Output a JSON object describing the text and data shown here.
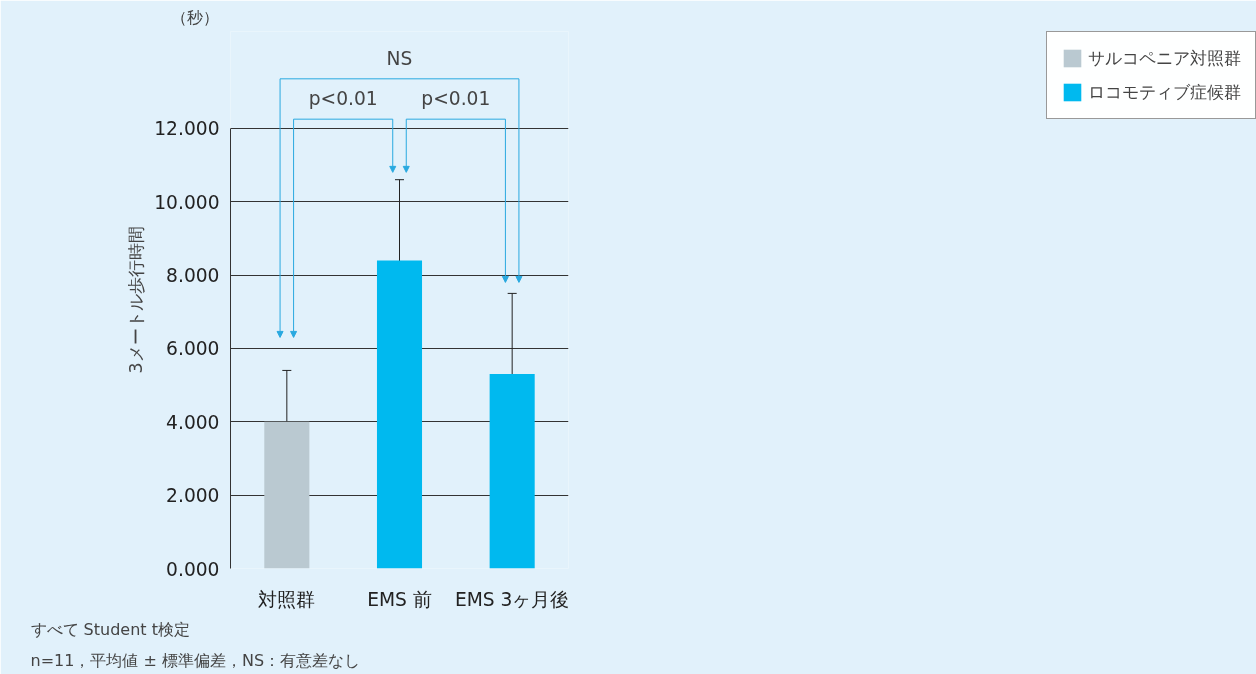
{
  "chart_data": {
    "type": "bar",
    "ylabel": "3メートル歩行時間",
    "categories": [
      "対照群",
      "EMS 前",
      "EMS 3ヶ月後"
    ],
    "series": [
      {
        "name": "サルコペニア対照群",
        "color": "#bac9d1",
        "values": [
          4.0,
          null,
          null
        ],
        "errors": [
          1.4,
          null,
          null
        ]
      },
      {
        "name": "ロコモティブ症候群",
        "color": "#00b9ef",
        "values": [
          null,
          8.4,
          5.3
        ],
        "errors": [
          null,
          2.2,
          2.2
        ]
      }
    ],
    "ylim": [
      0,
      12
    ],
    "yticks": [
      {
        "value": 0,
        "label": "0.000"
      },
      {
        "value": 2,
        "label": "2.000"
      },
      {
        "value": 4,
        "label": "4.000"
      },
      {
        "value": 6,
        "label": "6.000"
      },
      {
        "value": 8,
        "label": "8.000"
      },
      {
        "value": 10,
        "label": "10.000"
      },
      {
        "value": 12,
        "label": "12.000"
      }
    ],
    "grid": "y",
    "legend": "right",
    "annotations": [
      "（秒）",
      "NS",
      "p<0.01",
      "p<0.01",
      "すべて Student t検定",
      "n=11，平均値 ± 標準偏差，NS：有意差なし"
    ]
  }
}
